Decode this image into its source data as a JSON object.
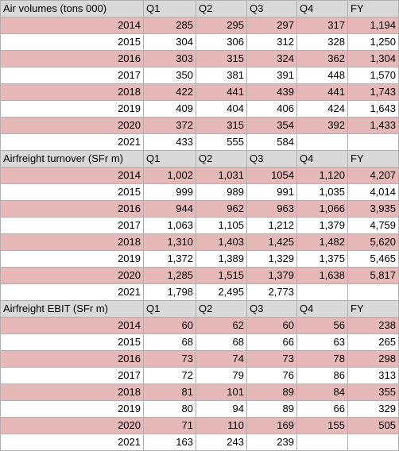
{
  "sections": [
    {
      "title": "Air volumes (tons 000)",
      "headers": [
        "Q1",
        "Q2",
        "Q3",
        "Q4",
        "FY"
      ],
      "rows": [
        {
          "year": "2014",
          "cells": [
            "285",
            "295",
            "297",
            "317",
            "1,194"
          ],
          "highlight": true
        },
        {
          "year": "2015",
          "cells": [
            "304",
            "306",
            "312",
            "328",
            "1,250"
          ],
          "highlight": false
        },
        {
          "year": "2016",
          "cells": [
            "303",
            "315",
            "324",
            "362",
            "1,304"
          ],
          "highlight": true
        },
        {
          "year": "2017",
          "cells": [
            "350",
            "381",
            "391",
            "448",
            "1,570"
          ],
          "highlight": false
        },
        {
          "year": "2018",
          "cells": [
            "422",
            "441",
            "439",
            "441",
            "1,743"
          ],
          "highlight": true
        },
        {
          "year": "2019",
          "cells": [
            "409",
            "404",
            "406",
            "424",
            "1,643"
          ],
          "highlight": false
        },
        {
          "year": "2020",
          "cells": [
            "372",
            "315",
            "354",
            "392",
            "1,433"
          ],
          "highlight": true
        },
        {
          "year": "2021",
          "cells": [
            "433",
            "555",
            "584",
            "",
            ""
          ],
          "highlight": false
        }
      ]
    },
    {
      "title": "Airfreight turnover (SFr m)",
      "headers": [
        "Q1",
        "Q2",
        "Q3",
        "Q4",
        "FY"
      ],
      "rows": [
        {
          "year": "2014",
          "cells": [
            "1,002",
            "1,031",
            "1054",
            "1,120",
            "4,207"
          ],
          "highlight": true
        },
        {
          "year": "2015",
          "cells": [
            "999",
            "989",
            "991",
            "1,035",
            "4,014"
          ],
          "highlight": false
        },
        {
          "year": "2016",
          "cells": [
            "944",
            "962",
            "963",
            "1,066",
            "3,935"
          ],
          "highlight": true
        },
        {
          "year": "2017",
          "cells": [
            "1,063",
            "1,105",
            "1,212",
            "1,379",
            "4,759"
          ],
          "highlight": false
        },
        {
          "year": "2018",
          "cells": [
            "1,310",
            "1,403",
            "1,425",
            "1,482",
            "5,620"
          ],
          "highlight": true
        },
        {
          "year": "2019",
          "cells": [
            "1,372",
            "1,389",
            "1,329",
            "1,375",
            "5,465"
          ],
          "highlight": false
        },
        {
          "year": "2020",
          "cells": [
            "1,285",
            "1,515",
            "1,379",
            "1,638",
            "5,817"
          ],
          "highlight": true
        },
        {
          "year": "2021",
          "cells": [
            "1,798",
            "2,495",
            "2,773",
            "",
            ""
          ],
          "highlight": false
        }
      ]
    },
    {
      "title": "Airfreight EBIT (SFr m)",
      "headers": [
        "Q1",
        "Q2",
        "Q3",
        "Q4",
        "FY"
      ],
      "rows": [
        {
          "year": "2014",
          "cells": [
            "60",
            "62",
            "60",
            "56",
            "238"
          ],
          "highlight": true
        },
        {
          "year": "2015",
          "cells": [
            "68",
            "68",
            "66",
            "63",
            "265"
          ],
          "highlight": false
        },
        {
          "year": "2016",
          "cells": [
            "73",
            "74",
            "73",
            "78",
            "298"
          ],
          "highlight": true
        },
        {
          "year": "2017",
          "cells": [
            "72",
            "79",
            "76",
            "86",
            "313"
          ],
          "highlight": false
        },
        {
          "year": "2018",
          "cells": [
            "81",
            "101",
            "89",
            "84",
            "355"
          ],
          "highlight": true
        },
        {
          "year": "2019",
          "cells": [
            "80",
            "94",
            "89",
            "66",
            "329"
          ],
          "highlight": false
        },
        {
          "year": "2020",
          "cells": [
            "71",
            "110",
            "169",
            "155",
            "505"
          ],
          "highlight": true
        },
        {
          "year": "2021",
          "cells": [
            "163",
            "243",
            "239",
            "",
            ""
          ],
          "highlight": false
        }
      ]
    }
  ]
}
